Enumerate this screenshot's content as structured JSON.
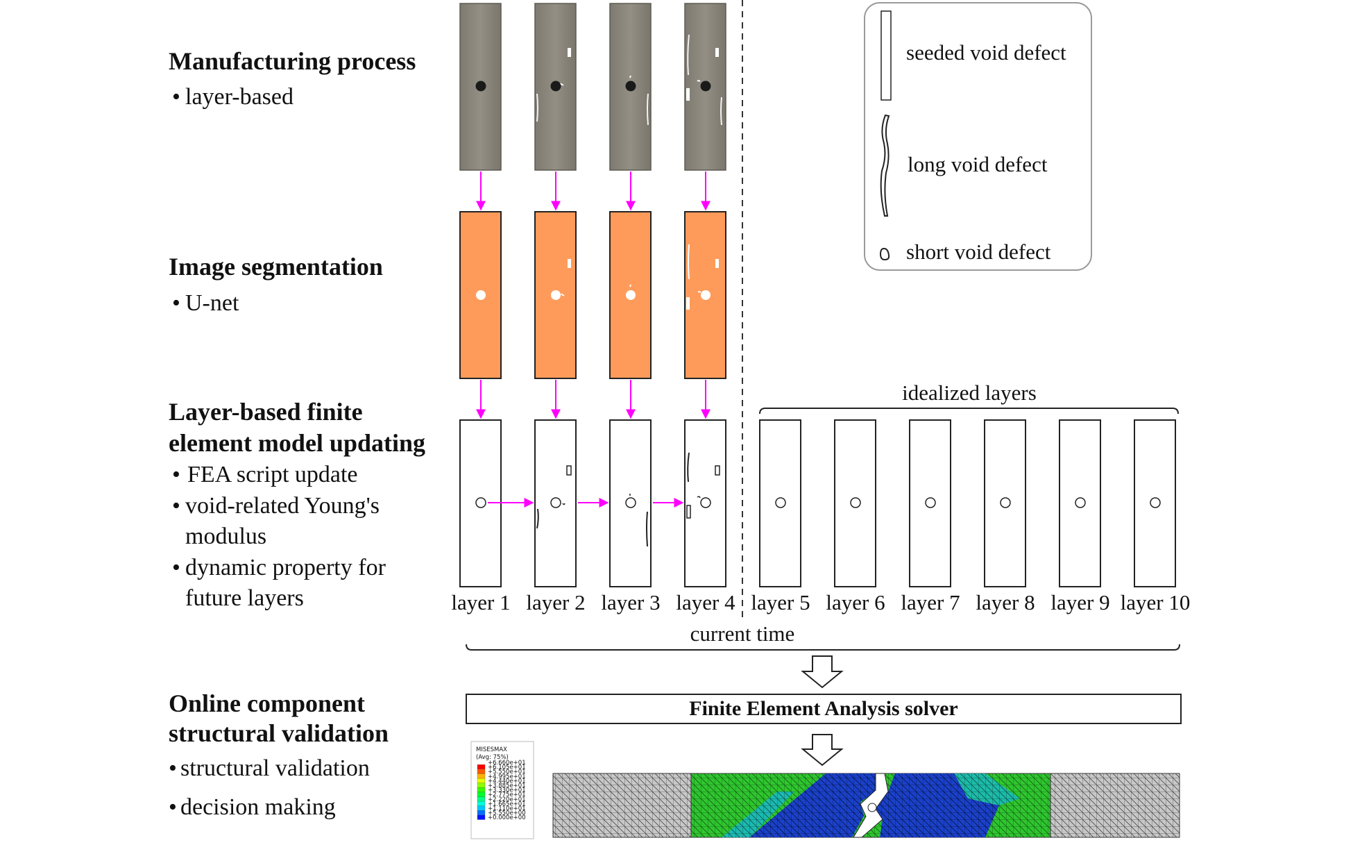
{
  "sections": {
    "manufacturing": {
      "title": "Manufacturing process",
      "bullets": [
        "layer-based"
      ]
    },
    "segmentation": {
      "title": "Image segmentation",
      "bullets": [
        "U-net"
      ]
    },
    "fe_updating": {
      "title_lines": [
        "Layer-based finite",
        "element model updating"
      ],
      "bullets": [
        [
          "FEA script update"
        ],
        [
          "void-related Young's",
          "modulus"
        ],
        [
          "dynamic property for",
          "future layers"
        ]
      ]
    },
    "validation": {
      "title_lines": [
        "Online component",
        "structural validation"
      ],
      "bullets": [
        "structural validation",
        "decision making"
      ]
    }
  },
  "layers": [
    "layer 1",
    "layer 2",
    "layer 3",
    "layer 4",
    "layer 5",
    "layer 6",
    "layer 7",
    "layer 8",
    "layer 9",
    "layer 10"
  ],
  "idealized_label": "idealized layers",
  "current_time_label": "current time",
  "solver_label": "Finite Element Analysis solver",
  "legend": {
    "items": [
      "seeded void defect",
      "long void defect",
      "short void defect"
    ]
  },
  "contour_legend": {
    "title": "MISESMAX",
    "subtitle": "(Avg: 75%)",
    "values": [
      "+6.660e+01",
      "+6.105e+01",
      "+5.550e+01",
      "+4.995e+01",
      "+4.440e+01",
      "+3.885e+01",
      "+3.330e+01",
      "+2.775e+01",
      "+2.220e+01",
      "+1.665e+01",
      "+1.110e+01",
      "+5.550e+00",
      "+0.000e+00"
    ],
    "colors": [
      "#ff0000",
      "#ff5a00",
      "#ffb400",
      "#e6ff00",
      "#8cff00",
      "#32ff00",
      "#00ff28",
      "#00ff82",
      "#00ffdc",
      "#00c8ff",
      "#006eff",
      "#0014ff",
      "#0000c8"
    ]
  },
  "colors": {
    "arrow": "#ff00ff",
    "photo_gray": "#8f8b80",
    "segmentation_orange": "#ff9b5a",
    "mesh_gray": "#c8c8c8",
    "mesh_green": "#2fc62f",
    "mesh_blue": "#1433c8"
  }
}
